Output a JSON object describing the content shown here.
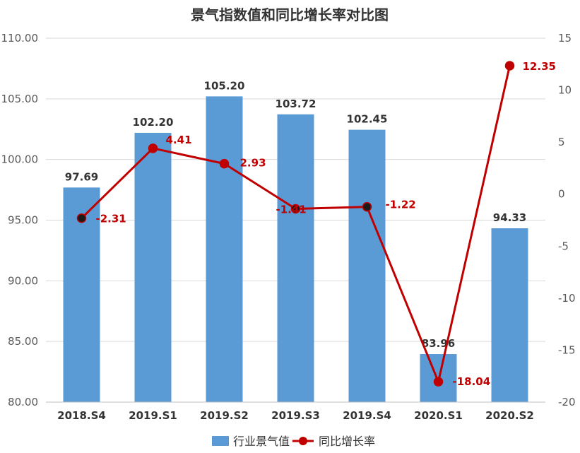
{
  "chart_data": {
    "type": "bar+line",
    "title": "景气指数值和同比增长率对比图",
    "categories": [
      "2018.S4",
      "2019.S1",
      "2019.S2",
      "2019.S3",
      "2019.S4",
      "2020.S1",
      "2020.S2"
    ],
    "series": [
      {
        "name": "行业景气值",
        "type": "bar",
        "axis": "left",
        "values": [
          97.69,
          102.2,
          105.2,
          103.72,
          102.45,
          83.96,
          94.33
        ],
        "labels": [
          "97.69",
          "102.20",
          "105.20",
          "103.72",
          "102.45",
          "83.96",
          "94.33"
        ],
        "color": "#5b9bd5"
      },
      {
        "name": "同比增长率",
        "type": "line",
        "axis": "right",
        "values": [
          -2.31,
          4.41,
          2.93,
          -1.41,
          -1.22,
          -18.04,
          12.35
        ],
        "labels": [
          "-2.31",
          "4.41",
          "2.93",
          "-1.41",
          "-1.22",
          "-18.04",
          "12.35"
        ],
        "color": "#c00000",
        "marker_color": "#c00000"
      }
    ],
    "y_left": {
      "range": [
        80,
        110
      ],
      "ticks": [
        "80.00",
        "85.00",
        "90.00",
        "95.00",
        "100.00",
        "105.00",
        "110.00"
      ]
    },
    "y_right": {
      "range": [
        -20,
        15
      ],
      "ticks": [
        "-20",
        "-15",
        "-10",
        "-5",
        "0",
        "5",
        "10",
        "15"
      ]
    },
    "grid": true,
    "legend": "bottom"
  }
}
